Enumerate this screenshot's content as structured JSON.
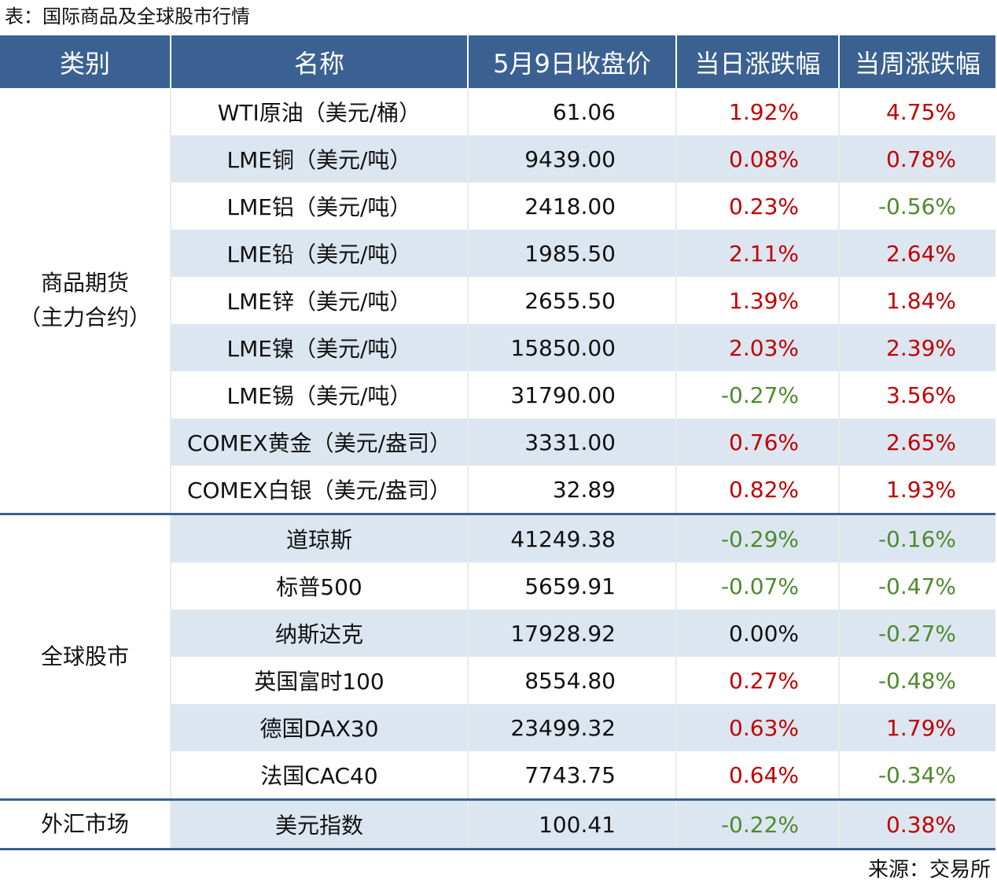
{
  "title": "表：国际商品及全球股市行情",
  "header": [
    "类别",
    "名称",
    "5月9日收盘价",
    "当日涨跌幅",
    "当周涨跌幅"
  ],
  "groups": [
    {
      "category": [
        "商品期货",
        "（主力合约）"
      ],
      "rows": [
        [
          "WTI原油（美元/桶）",
          "61.06",
          "1.92%",
          "4.75%"
        ],
        [
          "LME铜（美元/吨）",
          "9439.00",
          "0.08%",
          "0.78%"
        ],
        [
          "LME铝（美元/吨）",
          "2418.00",
          "0.23%",
          "-0.56%"
        ],
        [
          "LME铅（美元/吨）",
          "1985.50",
          "2.11%",
          "2.64%"
        ],
        [
          "LME锌（美元/吨）",
          "2655.50",
          "1.39%",
          "1.84%"
        ],
        [
          "LME镍（美元/吨）",
          "15850.00",
          "2.03%",
          "2.39%"
        ],
        [
          "LME锡（美元/吨）",
          "31790.00",
          "-0.27%",
          "3.56%"
        ],
        [
          "COMEX黄金（美元/盎司）",
          "3331.00",
          "0.76%",
          "2.65%"
        ],
        [
          "COMEX白银（美元/盎司）",
          "32.89",
          "0.82%",
          "1.93%"
        ]
      ]
    },
    {
      "category": [
        "全球股市"
      ],
      "rows": [
        [
          "道琼斯",
          "41249.38",
          "-0.29%",
          "-0.16%"
        ],
        [
          "标普500",
          "5659.91",
          "-0.07%",
          "-0.47%"
        ],
        [
          "纳斯达克",
          "17928.92",
          "0.00%",
          "-0.27%"
        ],
        [
          "英国富时100",
          "8554.80",
          "0.27%",
          "-0.48%"
        ],
        [
          "德国DAX30",
          "23499.32",
          "0.63%",
          "1.79%"
        ],
        [
          "法国CAC40",
          "7743.75",
          "0.64%",
          "-0.34%"
        ]
      ]
    },
    {
      "category": [
        "外汇市场"
      ],
      "rows": [
        [
          "美元指数",
          "100.41",
          "-0.22%",
          "0.38%"
        ]
      ]
    }
  ],
  "source": "来源：交易所"
}
